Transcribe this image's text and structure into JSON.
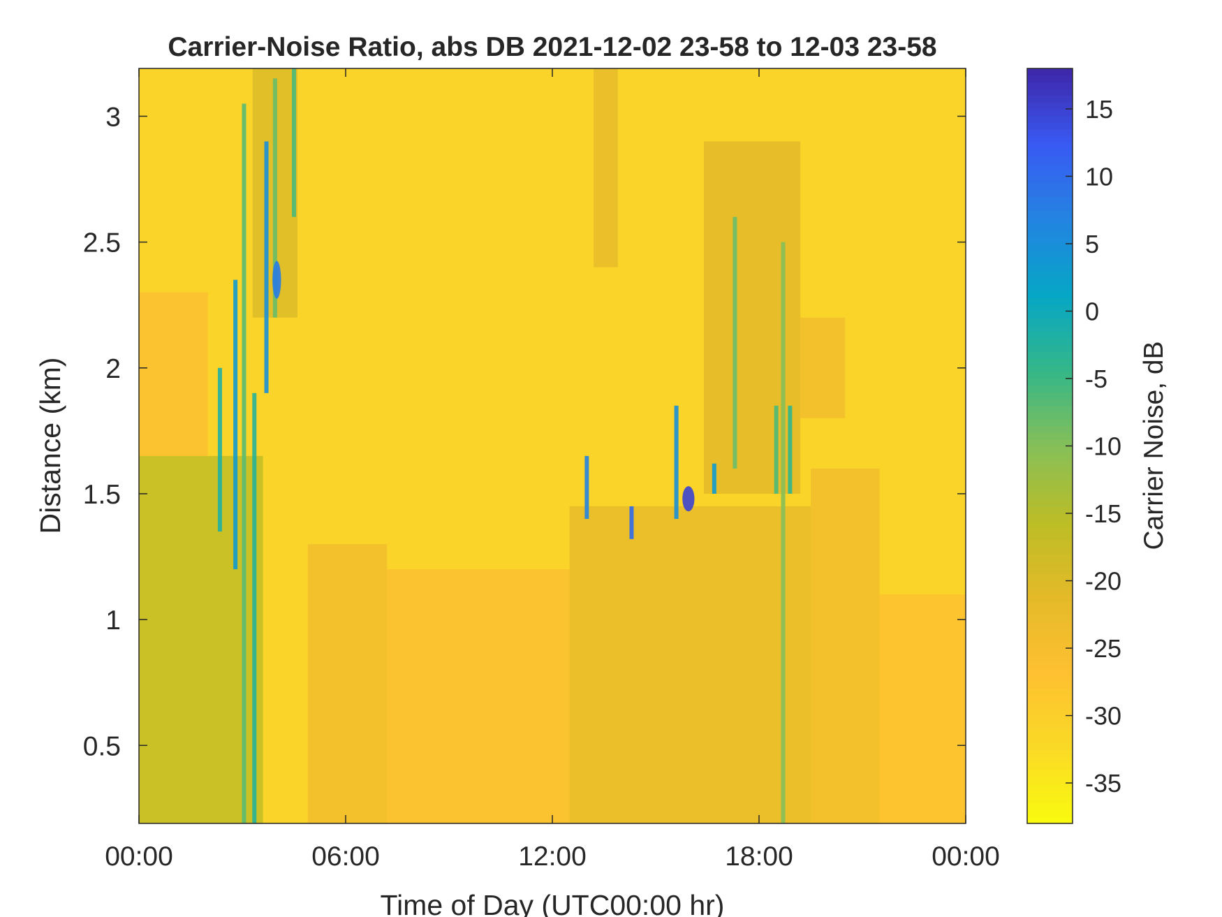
{
  "chart_data": {
    "type": "heatmap",
    "title": "Carrier-Noise Ratio, abs DB 2021-12-02 23-58 to 12-03 23-58",
    "xlabel": "Time of Day (UTC00:00 hr)",
    "ylabel": "Distance (km)",
    "colorbar_label": "Carrier Noise, dB",
    "x_range_hours": [
      0,
      24
    ],
    "y_range_km": [
      0.19,
      3.19
    ],
    "color_range_db": [
      -38,
      18
    ],
    "x_ticks": [
      {
        "value": 0,
        "label": "00:00"
      },
      {
        "value": 6,
        "label": "06:00"
      },
      {
        "value": 12,
        "label": "12:00"
      },
      {
        "value": 18,
        "label": "18:00"
      },
      {
        "value": 24,
        "label": "00:00"
      }
    ],
    "y_ticks": [
      {
        "value": 0.5,
        "label": "0.5"
      },
      {
        "value": 1,
        "label": "1"
      },
      {
        "value": 1.5,
        "label": "1.5"
      },
      {
        "value": 2,
        "label": "2"
      },
      {
        "value": 2.5,
        "label": "2.5"
      },
      {
        "value": 3,
        "label": "3"
      }
    ],
    "colorbar_ticks": [
      {
        "value": 15,
        "label": "15"
      },
      {
        "value": 10,
        "label": "10"
      },
      {
        "value": 5,
        "label": "5"
      },
      {
        "value": 0,
        "label": "0"
      },
      {
        "value": -5,
        "label": "-5"
      },
      {
        "value": -10,
        "label": "-10"
      },
      {
        "value": -15,
        "label": "-15"
      },
      {
        "value": -20,
        "label": "-20"
      },
      {
        "value": -25,
        "label": "-25"
      },
      {
        "value": -30,
        "label": "-30"
      },
      {
        "value": -35,
        "label": "-35"
      }
    ],
    "colormap": "parula",
    "grid": false,
    "background_level_db": -31,
    "regions": [
      {
        "t0": 0.0,
        "t1": 3.6,
        "d0": 0.19,
        "d1": 1.65,
        "db": -16
      },
      {
        "t0": 0.0,
        "t1": 2.0,
        "d0": 1.65,
        "d1": 2.3,
        "db": -26
      },
      {
        "t0": 4.9,
        "t1": 7.2,
        "d0": 0.19,
        "d1": 1.3,
        "db": -24
      },
      {
        "t0": 7.2,
        "t1": 12.5,
        "d0": 0.19,
        "d1": 1.2,
        "db": -26
      },
      {
        "t0": 12.5,
        "t1": 19.5,
        "d0": 0.19,
        "d1": 1.45,
        "db": -22
      },
      {
        "t0": 19.5,
        "t1": 21.5,
        "d0": 0.19,
        "d1": 1.6,
        "db": -24
      },
      {
        "t0": 21.5,
        "t1": 24.0,
        "d0": 0.19,
        "d1": 1.1,
        "db": -27
      },
      {
        "t0": 16.4,
        "t1": 19.2,
        "d0": 1.5,
        "d1": 2.9,
        "db": -21
      },
      {
        "t0": 13.2,
        "t1": 13.9,
        "d0": 2.4,
        "d1": 3.19,
        "db": -22
      },
      {
        "t0": 19.2,
        "t1": 20.5,
        "d0": 1.8,
        "d1": 2.2,
        "db": -24
      },
      {
        "t0": 3.3,
        "t1": 4.6,
        "d0": 2.2,
        "d1": 3.19,
        "db": -20
      }
    ],
    "streaks": [
      {
        "t": 2.35,
        "d0": 1.35,
        "d1": 2.0,
        "db": -2
      },
      {
        "t": 2.8,
        "d0": 1.2,
        "d1": 2.35,
        "db": 3
      },
      {
        "t": 3.05,
        "d0": 0.19,
        "d1": 3.05,
        "db": -7
      },
      {
        "t": 3.35,
        "d0": 0.19,
        "d1": 1.9,
        "db": -3
      },
      {
        "t": 3.7,
        "d0": 1.9,
        "d1": 2.9,
        "db": 5
      },
      {
        "t": 3.95,
        "d0": 2.2,
        "d1": 3.15,
        "db": -8
      },
      {
        "t": 4.5,
        "d0": 2.6,
        "d1": 3.19,
        "db": -6
      },
      {
        "t": 13.0,
        "d0": 1.4,
        "d1": 1.65,
        "db": 7
      },
      {
        "t": 14.3,
        "d0": 1.32,
        "d1": 1.45,
        "db": 10
      },
      {
        "t": 15.6,
        "d0": 1.4,
        "d1": 1.85,
        "db": 5
      },
      {
        "t": 16.7,
        "d0": 1.5,
        "d1": 1.62,
        "db": 3
      },
      {
        "t": 17.3,
        "d0": 1.6,
        "d1": 2.6,
        "db": -8
      },
      {
        "t": 18.5,
        "d0": 1.5,
        "d1": 1.85,
        "db": -6
      },
      {
        "t": 18.7,
        "d0": 0.19,
        "d1": 2.5,
        "db": -10
      },
      {
        "t": 18.9,
        "d0": 1.5,
        "d1": 1.85,
        "db": -4
      }
    ],
    "blobs": [
      {
        "t": 15.95,
        "d": 1.48,
        "dt": 0.35,
        "dd": 0.1,
        "db": 15
      },
      {
        "t": 4.0,
        "d": 2.35,
        "dt": 0.25,
        "dd": 0.15,
        "db": 8
      }
    ]
  }
}
